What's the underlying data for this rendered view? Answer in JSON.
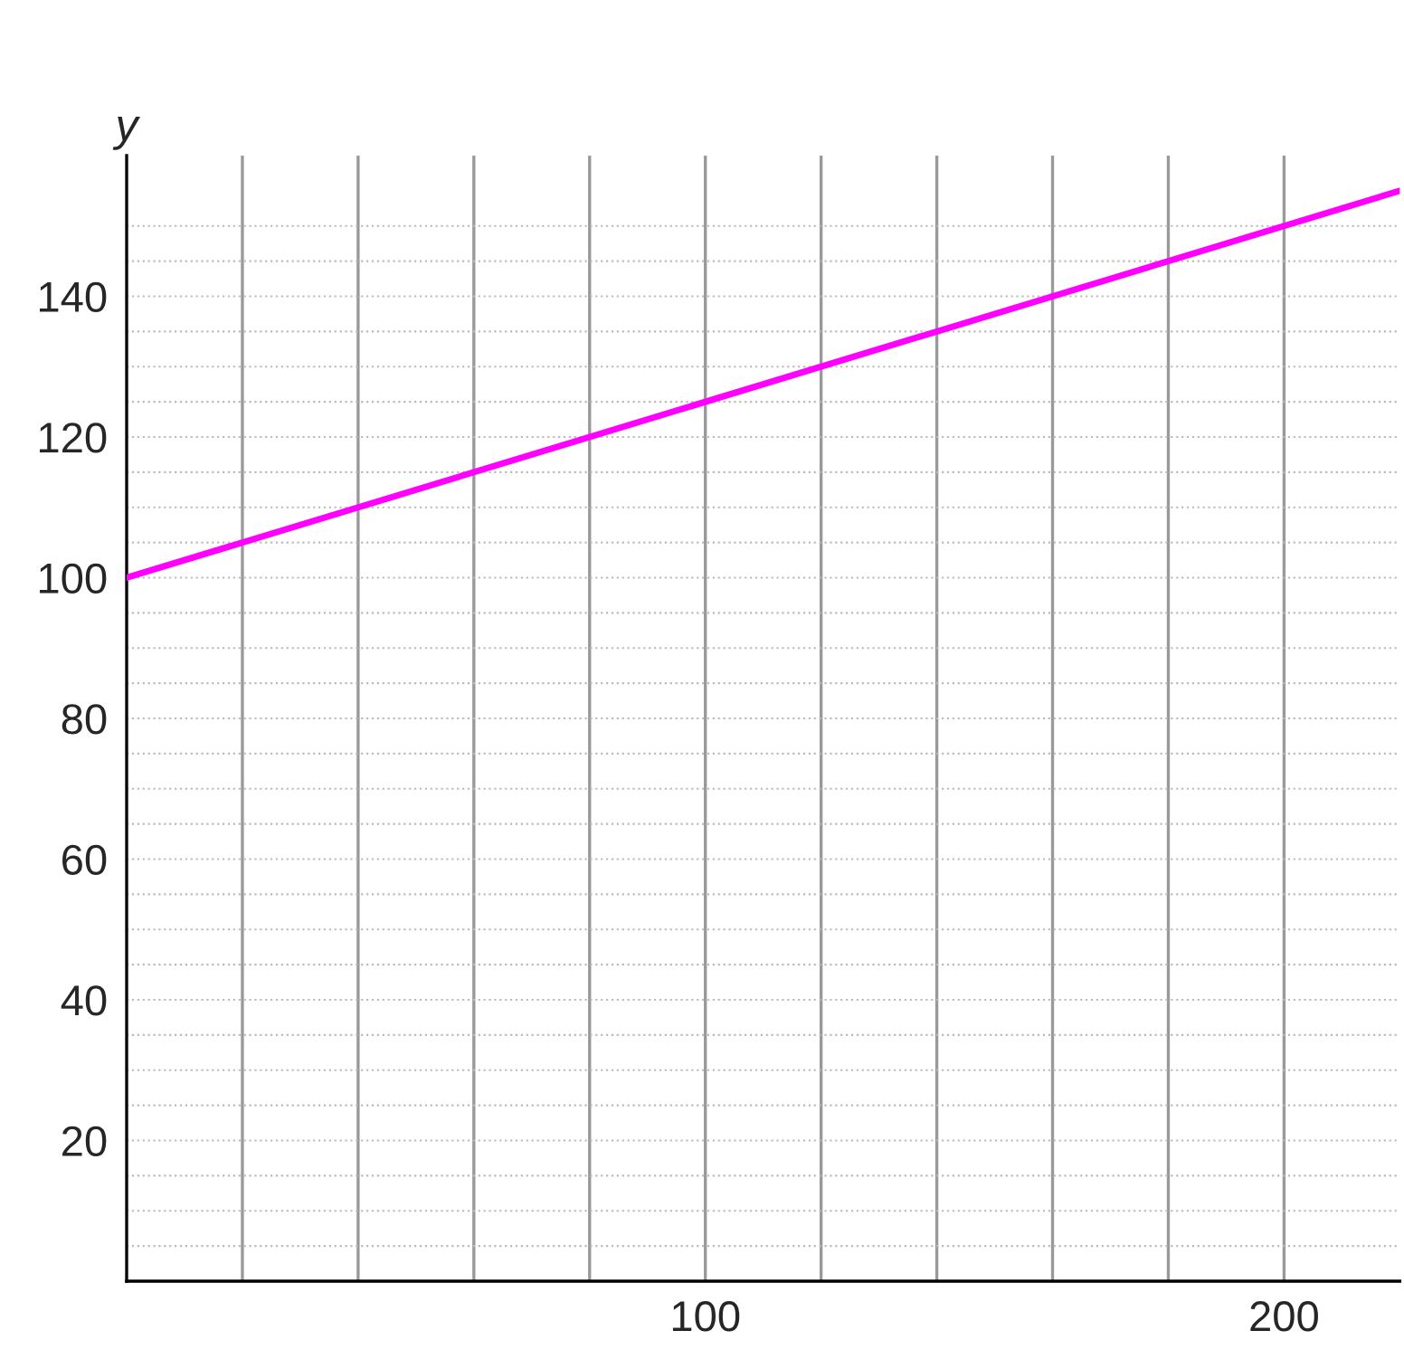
{
  "chart_data": {
    "type": "line",
    "ylabel": "y",
    "x": [
      0,
      220
    ],
    "series": [
      {
        "color": "#ff00ff",
        "values": [
          100,
          155
        ]
      }
    ],
    "xlim": [
      0,
      220
    ],
    "ylim": [
      0,
      160
    ],
    "xticks": [
      {
        "value": 20,
        "label": null
      },
      {
        "value": 40,
        "label": null
      },
      {
        "value": 60,
        "label": null
      },
      {
        "value": 80,
        "label": null
      },
      100,
      {
        "value": 120,
        "label": null
      },
      {
        "value": 140,
        "label": null
      },
      {
        "value": 160,
        "label": null
      },
      {
        "value": 180,
        "label": null
      },
      200
    ],
    "yticks": [
      {
        "value": 5,
        "label": null
      },
      {
        "value": 10,
        "label": null
      },
      {
        "value": 15,
        "label": null
      },
      20,
      {
        "value": 25,
        "label": null
      },
      {
        "value": 30,
        "label": null
      },
      {
        "value": 35,
        "label": null
      },
      40,
      {
        "value": 45,
        "label": null
      },
      {
        "value": 50,
        "label": null
      },
      {
        "value": 55,
        "label": null
      },
      60,
      {
        "value": 65,
        "label": null
      },
      {
        "value": 70,
        "label": null
      },
      {
        "value": 75,
        "label": null
      },
      80,
      {
        "value": 85,
        "label": null
      },
      {
        "value": 90,
        "label": null
      },
      {
        "value": 95,
        "label": null
      },
      100,
      {
        "value": 105,
        "label": null
      },
      {
        "value": 110,
        "label": null
      },
      {
        "value": 115,
        "label": null
      },
      120,
      {
        "value": 125,
        "label": null
      },
      {
        "value": 130,
        "label": null
      },
      {
        "value": 135,
        "label": null
      },
      140,
      {
        "value": 145,
        "label": null
      },
      {
        "value": 150,
        "label": null
      }
    ],
    "grid": true,
    "legend": false,
    "marker": "none",
    "line_style": "solid"
  }
}
